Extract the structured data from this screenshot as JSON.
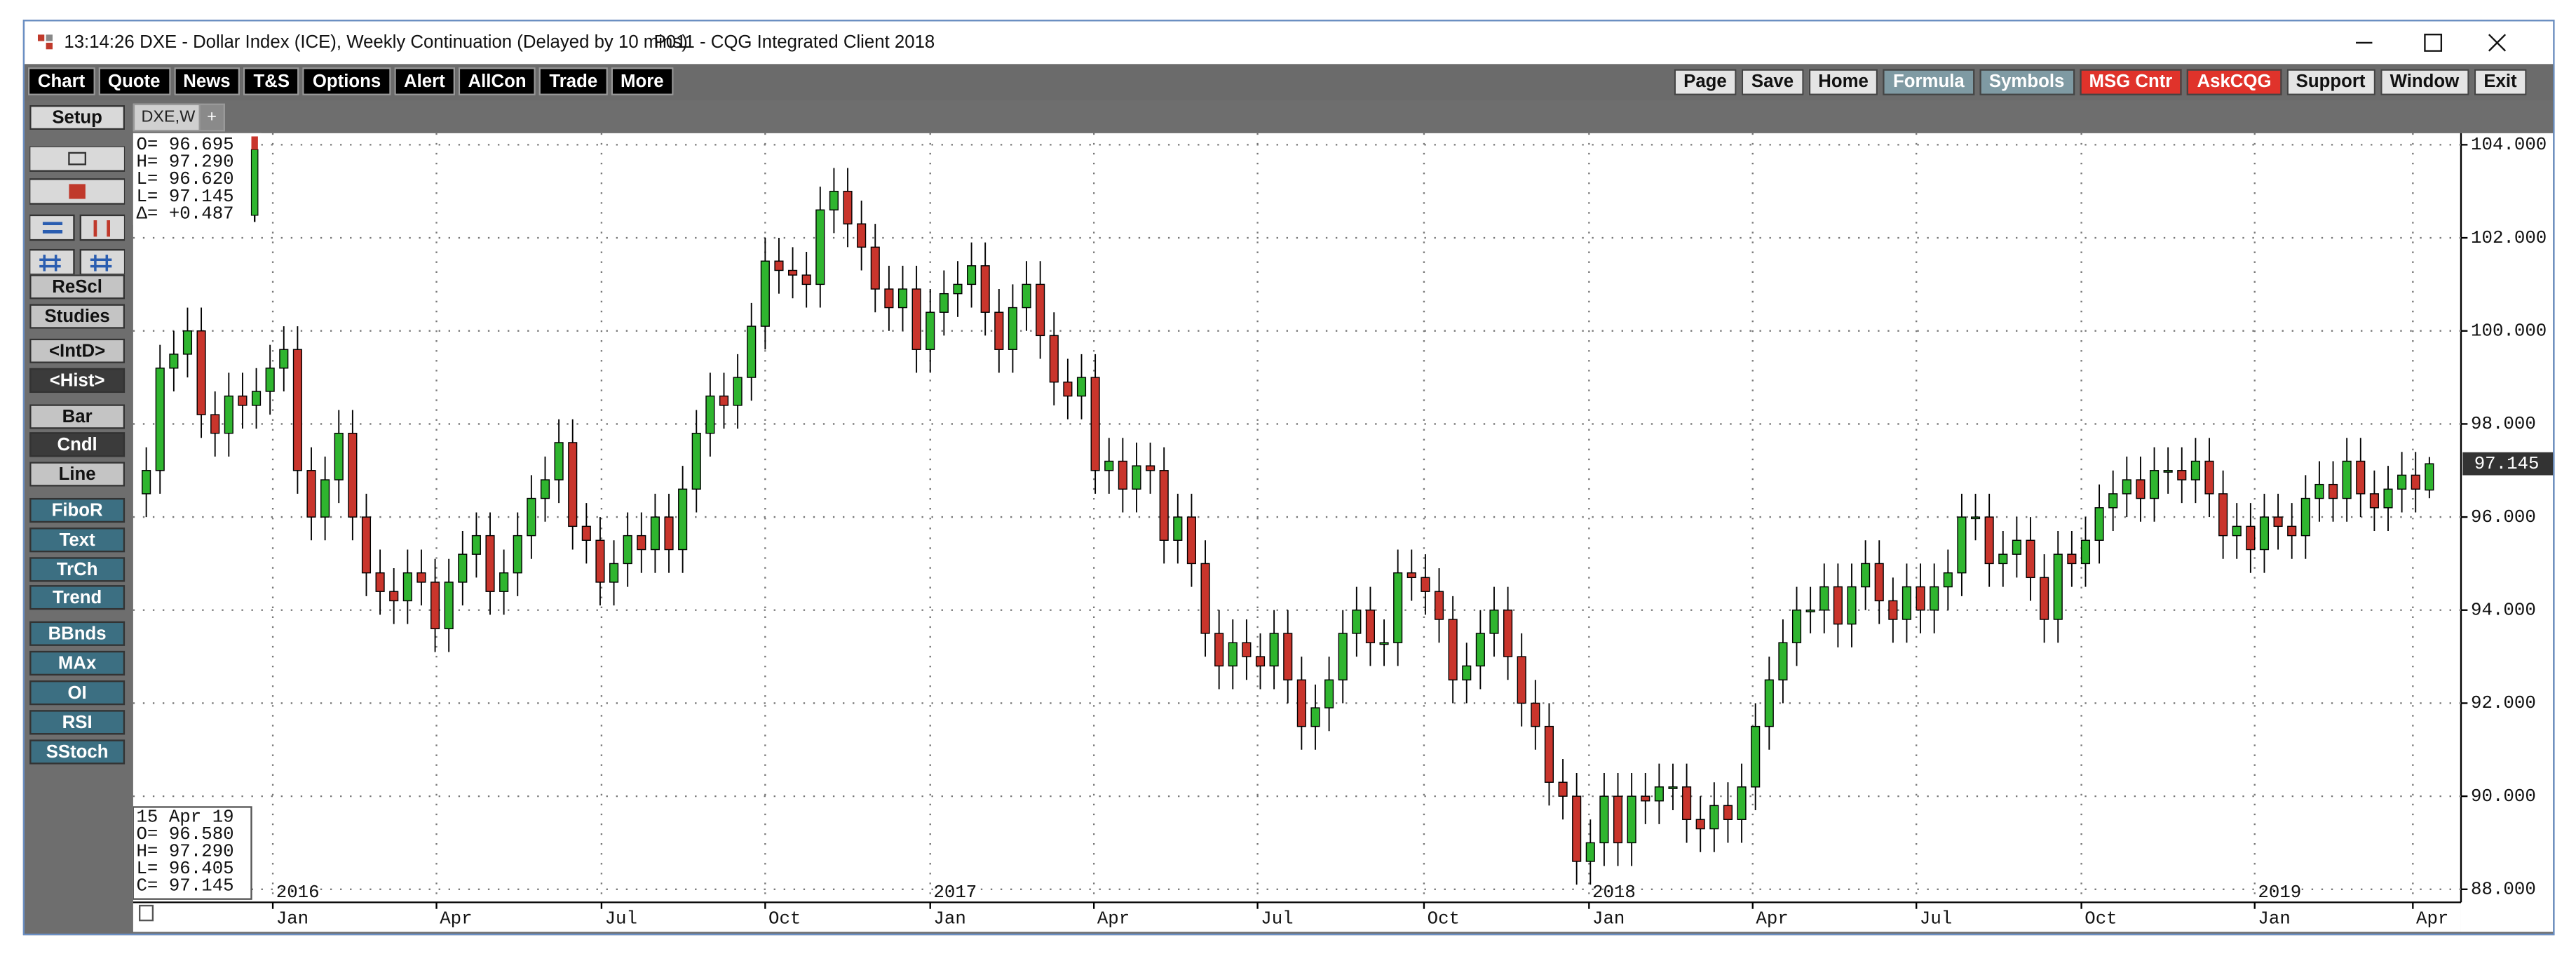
{
  "window": {
    "time": "13:14:26",
    "title": "DXE - Dollar Index (ICE), Weekly Continuation (Delayed by 10 mins)",
    "app": "P011 - CQG Integrated Client 2018"
  },
  "toolbar_left": [
    "Chart",
    "Quote",
    "News",
    "T&S",
    "Options",
    "Alert",
    "AllCon",
    "Trade",
    "More"
  ],
  "toolbar_right": [
    {
      "label": "Page",
      "color": "#e4e4e4",
      "text_color": "#111"
    },
    {
      "label": "Save",
      "color": "#e4e4e4",
      "text_color": "#111"
    },
    {
      "label": "Home",
      "color": "#e4e4e4",
      "text_color": "#111"
    },
    {
      "label": "Formula",
      "color": "#7f9aa3",
      "text_color": "#fff"
    },
    {
      "label": "Symbols",
      "color": "#7f9aa3",
      "text_color": "#fff"
    },
    {
      "label": "MSG Cntr",
      "color": "#e0332b",
      "text_color": "#fff"
    },
    {
      "label": "AskCQG",
      "color": "#e0332b",
      "text_color": "#fff"
    },
    {
      "label": "Support",
      "color": "#e4e4e4",
      "text_color": "#111"
    },
    {
      "label": "Window",
      "color": "#e4e4e4",
      "text_color": "#111"
    },
    {
      "label": "Exit",
      "color": "#e4e4e4",
      "text_color": "#111"
    }
  ],
  "sidebar": [
    {
      "label": "Setup",
      "color": "#d9d9d9",
      "text_color": "#111"
    },
    {
      "label": "ReScl",
      "color": "#c4c4c4",
      "text_color": "#111"
    },
    {
      "label": "Studies",
      "color": "#c4c4c4",
      "text_color": "#111"
    },
    {
      "label": "<IntD>",
      "color": "#c4c4c4",
      "text_color": "#111"
    },
    {
      "label": "<Hist>",
      "color": "#3b3b3b",
      "text_color": "#fff"
    },
    {
      "label": "Bar",
      "color": "#c4c4c4",
      "text_color": "#111"
    },
    {
      "label": "Cndl",
      "color": "#3b3b3b",
      "text_color": "#fff"
    },
    {
      "label": "Line",
      "color": "#c4c4c4",
      "text_color": "#111"
    },
    {
      "label": "FiboR",
      "color": "#3c6f82",
      "text_color": "#fff"
    },
    {
      "label": "Text",
      "color": "#3c6f82",
      "text_color": "#fff"
    },
    {
      "label": "TrCh",
      "color": "#3c6f82",
      "text_color": "#fff"
    },
    {
      "label": "Trend",
      "color": "#3c6f82",
      "text_color": "#fff"
    },
    {
      "label": "BBnds",
      "color": "#3c6f82",
      "text_color": "#fff"
    },
    {
      "label": "MAx",
      "color": "#3c6f82",
      "text_color": "#fff"
    },
    {
      "label": "OI",
      "color": "#3c6f82",
      "text_color": "#fff"
    },
    {
      "label": "RSI",
      "color": "#3c6f82",
      "text_color": "#fff"
    },
    {
      "label": "SStoch",
      "color": "#3c6f82",
      "text_color": "#fff"
    }
  ],
  "tab": "DXE,W",
  "tab_add": "+",
  "chart_data": {
    "type": "candlestick",
    "up_color": "#2fb52f",
    "down_color": "#c9352c",
    "open": [
      96.5,
      97,
      99.2,
      99.5,
      100.0,
      98.2,
      97.8,
      98.6,
      98.4,
      98.7,
      99.2,
      99.6,
      97.0,
      96.0,
      96.8,
      97.8,
      96.0,
      94.8,
      94.4,
      94.2,
      94.8,
      94.6,
      93.6,
      94.6,
      95.2,
      95.6,
      94.4,
      94.8,
      95.6,
      96.4,
      96.8,
      97.6,
      95.8,
      95.5,
      94.6,
      95.0,
      95.6,
      95.3,
      96.0,
      95.3,
      96.6,
      97.8,
      98.6,
      98.4,
      99.0,
      100.1,
      101.5,
      101.3,
      101.2,
      101.0,
      102.6,
      103.0,
      102.3,
      101.8,
      100.9,
      100.5,
      100.9,
      99.6,
      100.4,
      100.8,
      101.0,
      101.4,
      100.4,
      99.6,
      100.5,
      101.0,
      99.9,
      98.9,
      98.6,
      99.0,
      97.0,
      97.2,
      96.6,
      97.1,
      97.0,
      95.5,
      96.0,
      95.0,
      93.5,
      92.8,
      93.3,
      93.0,
      92.8,
      93.5,
      92.5,
      91.5,
      91.9,
      92.5,
      93.5,
      94.0,
      93.3,
      93.3,
      94.8,
      94.7,
      94.4,
      93.8,
      92.5,
      92.8,
      93.5,
      94.0,
      93.0,
      92.0,
      91.5,
      90.3,
      90.0,
      88.6,
      89.0,
      90.0,
      89.0,
      90.0,
      89.9,
      90.2,
      90.2,
      89.5,
      89.3,
      89.8,
      89.5,
      90.2,
      91.5,
      92.5,
      93.3,
      94.0,
      94.0,
      94.5,
      93.7,
      94.5,
      95.0,
      94.2,
      93.8,
      94.5,
      94.0,
      94.5,
      94.8,
      96.0,
      96.0,
      95.0,
      95.2,
      95.5,
      94.7,
      93.8,
      95.2,
      95.0,
      95.5,
      96.2,
      96.5,
      96.8,
      96.4,
      97.0,
      97.0,
      96.8,
      97.2,
      96.5,
      95.6,
      95.8,
      95.3,
      96.0,
      95.8,
      95.6,
      96.4,
      96.7,
      96.4,
      97.2,
      96.5,
      96.2,
      96.6,
      96.9,
      96.58
    ],
    "high": [
      97.5,
      99.7,
      100.0,
      100.5,
      100.5,
      98.7,
      99.1,
      99.1,
      99.2,
      99.7,
      100.1,
      100.1,
      97.5,
      97.3,
      98.3,
      98.3,
      96.5,
      95.3,
      94.9,
      95.3,
      95.3,
      95.1,
      95.1,
      95.7,
      96.1,
      96.1,
      95.3,
      96.1,
      96.9,
      97.3,
      98.1,
      98.1,
      96.3,
      96.0,
      95.5,
      96.1,
      96.1,
      96.5,
      96.5,
      97.1,
      98.3,
      99.1,
      99.1,
      99.5,
      100.6,
      102.0,
      102.0,
      101.8,
      101.7,
      103.1,
      103.5,
      103.5,
      102.8,
      102.3,
      101.4,
      101.4,
      101.4,
      100.9,
      101.3,
      101.5,
      101.9,
      101.9,
      100.9,
      101.0,
      101.5,
      101.5,
      100.4,
      99.4,
      99.5,
      99.5,
      97.7,
      97.7,
      97.6,
      97.6,
      97.5,
      96.5,
      96.5,
      95.5,
      94.0,
      93.8,
      93.8,
      93.5,
      94.0,
      94.0,
      93.0,
      92.4,
      93.0,
      94.0,
      94.5,
      94.5,
      93.8,
      95.3,
      95.3,
      95.2,
      94.9,
      94.3,
      93.3,
      94.0,
      94.5,
      94.5,
      93.5,
      92.5,
      92.0,
      90.8,
      90.5,
      89.5,
      90.5,
      90.5,
      90.5,
      90.5,
      90.7,
      90.7,
      90.7,
      90.0,
      90.3,
      90.3,
      90.7,
      92.0,
      93.0,
      93.8,
      94.5,
      94.5,
      95.0,
      95.0,
      95.0,
      95.5,
      95.5,
      94.7,
      95.0,
      95.0,
      95.0,
      95.3,
      96.5,
      96.5,
      96.5,
      95.7,
      96.0,
      96.0,
      95.2,
      95.7,
      95.7,
      96.0,
      96.7,
      97.0,
      97.3,
      97.3,
      97.5,
      97.5,
      97.5,
      97.7,
      97.7,
      97.0,
      96.3,
      96.3,
      96.5,
      96.5,
      96.3,
      96.9,
      97.2,
      97.2,
      97.7,
      97.7,
      97.0,
      97.1,
      97.4,
      97.4,
      97.29
    ],
    "low": [
      96.0,
      96.5,
      98.7,
      99.0,
      97.7,
      97.3,
      97.3,
      97.9,
      97.9,
      98.2,
      98.7,
      96.5,
      95.5,
      95.5,
      96.3,
      95.5,
      94.3,
      93.9,
      93.7,
      93.7,
      94.1,
      93.1,
      93.1,
      94.1,
      94.7,
      93.9,
      93.9,
      94.3,
      95.1,
      95.9,
      96.3,
      95.3,
      95.0,
      94.1,
      94.1,
      94.5,
      94.8,
      94.8,
      94.8,
      94.8,
      96.1,
      97.3,
      97.9,
      97.9,
      98.5,
      99.6,
      100.8,
      100.7,
      100.5,
      100.5,
      102.1,
      101.8,
      101.3,
      100.4,
      100.0,
      100.0,
      99.1,
      99.1,
      99.9,
      100.3,
      100.5,
      99.9,
      99.1,
      99.1,
      100.0,
      99.4,
      98.4,
      98.1,
      98.1,
      96.5,
      96.5,
      96.1,
      96.1,
      96.5,
      95.0,
      95.0,
      94.5,
      93.0,
      92.3,
      92.3,
      92.5,
      92.3,
      92.3,
      92.0,
      91.0,
      91.0,
      91.4,
      92.0,
      93.0,
      92.8,
      92.8,
      92.8,
      94.2,
      93.9,
      93.3,
      92.0,
      92.0,
      92.3,
      93.0,
      92.5,
      91.5,
      91.0,
      89.8,
      89.5,
      88.1,
      88.1,
      88.5,
      88.5,
      88.5,
      89.4,
      89.4,
      89.7,
      89.0,
      88.8,
      88.8,
      89.0,
      89.0,
      89.7,
      91.0,
      92.0,
      92.8,
      93.5,
      93.5,
      93.2,
      93.2,
      94.0,
      93.7,
      93.3,
      93.3,
      93.5,
      93.5,
      94.0,
      94.3,
      95.5,
      94.5,
      94.5,
      94.7,
      94.2,
      93.3,
      93.3,
      94.5,
      94.5,
      95.0,
      95.7,
      96.0,
      95.9,
      95.9,
      96.5,
      96.3,
      96.3,
      96.0,
      95.1,
      95.1,
      94.8,
      94.8,
      95.3,
      95.1,
      95.1,
      95.9,
      95.9,
      95.9,
      96.0,
      95.7,
      95.7,
      96.1,
      96.1,
      96.405
    ],
    "close": [
      97,
      99.2,
      99.5,
      100.0,
      98.2,
      97.8,
      98.6,
      98.4,
      98.7,
      99.2,
      99.6,
      97.0,
      96.0,
      96.8,
      97.8,
      96.0,
      94.8,
      94.4,
      94.2,
      94.8,
      94.6,
      93.6,
      94.6,
      95.2,
      95.6,
      94.4,
      94.8,
      95.6,
      96.4,
      96.8,
      97.6,
      95.8,
      95.5,
      94.6,
      95.0,
      95.6,
      95.3,
      96.0,
      95.3,
      96.6,
      97.8,
      98.6,
      98.4,
      99.0,
      100.1,
      101.5,
      101.3,
      101.2,
      101.0,
      102.6,
      103.0,
      102.3,
      101.8,
      100.9,
      100.5,
      100.9,
      99.6,
      100.4,
      100.8,
      101.0,
      101.4,
      100.4,
      99.6,
      100.5,
      101.0,
      99.9,
      98.9,
      98.6,
      99.0,
      97.0,
      97.2,
      96.6,
      97.1,
      97.0,
      95.5,
      96.0,
      95.0,
      93.5,
      92.8,
      93.3,
      93.0,
      92.8,
      93.5,
      92.5,
      91.5,
      91.9,
      92.5,
      93.5,
      94.0,
      93.3,
      93.3,
      94.8,
      94.7,
      94.4,
      93.8,
      92.5,
      92.8,
      93.5,
      94.0,
      93.0,
      92.0,
      91.5,
      90.3,
      90.0,
      88.6,
      89.0,
      90.0,
      89.0,
      90.0,
      89.9,
      90.2,
      90.2,
      89.5,
      89.3,
      89.8,
      89.5,
      90.2,
      91.5,
      92.5,
      93.3,
      94.0,
      94.0,
      94.5,
      93.7,
      94.5,
      95.0,
      94.2,
      93.8,
      94.5,
      94.0,
      94.5,
      94.8,
      96.0,
      96.0,
      95.0,
      95.2,
      95.5,
      94.7,
      93.8,
      95.2,
      95.0,
      95.5,
      96.2,
      96.5,
      96.8,
      96.4,
      97.0,
      97.0,
      96.8,
      97.2,
      96.5,
      95.6,
      95.8,
      95.3,
      96.0,
      95.8,
      95.6,
      96.4,
      96.7,
      96.4,
      97.2,
      96.5,
      96.2,
      96.6,
      96.9,
      96.6,
      97.145
    ],
    "xlim": [
      -0.96,
      168.3
    ],
    "ylim": [
      87.72,
      104.25
    ],
    "yticks": [
      {
        "value": 104,
        "label": "104.000"
      },
      {
        "value": 102,
        "label": "102.000"
      },
      {
        "value": 100,
        "label": "100.000"
      },
      {
        "value": 98,
        "label": "98.000"
      },
      {
        "value": 96,
        "label": "96.000"
      },
      {
        "value": 94,
        "label": "94.000"
      },
      {
        "value": 92,
        "label": "92.000"
      },
      {
        "value": 90,
        "label": "90.000"
      },
      {
        "value": 88,
        "label": "88.000"
      }
    ],
    "xticks": [
      {
        "value": 9.2,
        "label": "Jan"
      },
      {
        "value": 21.1,
        "label": "Apr"
      },
      {
        "value": 33.1,
        "label": "Jul"
      },
      {
        "value": 45.0,
        "label": "Oct"
      },
      {
        "value": 57.0,
        "label": "Jan"
      },
      {
        "value": 68.9,
        "label": "Apr"
      },
      {
        "value": 80.8,
        "label": "Jul"
      },
      {
        "value": 92.9,
        "label": "Oct"
      },
      {
        "value": 104.9,
        "label": "Jan"
      },
      {
        "value": 116.8,
        "label": "Apr"
      },
      {
        "value": 128.7,
        "label": "Jul"
      },
      {
        "value": 140.7,
        "label": "Oct"
      },
      {
        "value": 153.3,
        "label": "Jan"
      },
      {
        "value": 164.8,
        "label": "Apr"
      }
    ],
    "year_labels": [
      {
        "value": 9.2,
        "label": "2016"
      },
      {
        "value": 57.0,
        "label": "2017"
      },
      {
        "value": 104.9,
        "label": "2018"
      },
      {
        "value": 153.3,
        "label": "2019"
      }
    ],
    "grid": true,
    "last_price": 97.145,
    "info_box": [
      "O=  96.695",
      "H=  97.290",
      "L=  96.620",
      "L=  97.145",
      "Δ= +0.487"
    ],
    "date_box": [
      "15 Apr 19",
      "O=  96.580",
      "H=  97.290",
      "L=  96.405",
      "C=  97.145"
    ]
  }
}
